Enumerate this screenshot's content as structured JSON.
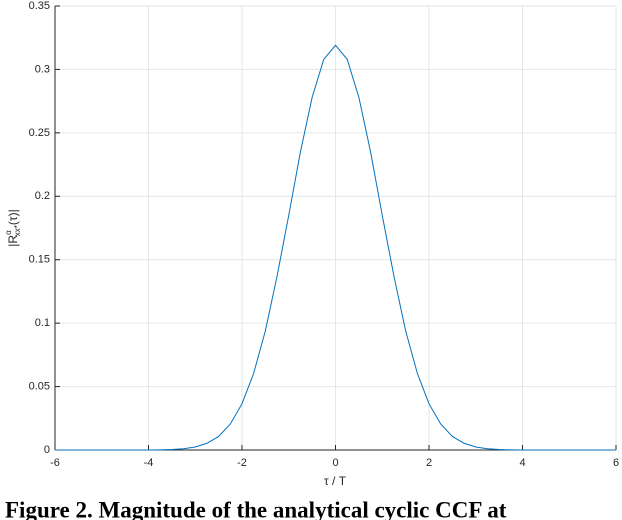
{
  "chart_data": {
    "type": "line",
    "xlabel": "τ / T",
    "ylabel": {
      "base": "|R",
      "sup": "α",
      "sub": "xx*",
      "tail": "(τ)|"
    },
    "x": [
      -6,
      -5.75,
      -5.5,
      -5.25,
      -5,
      -4.75,
      -4.5,
      -4.25,
      -4,
      -3.75,
      -3.5,
      -3.25,
      -3,
      -2.75,
      -2.5,
      -2.25,
      -2,
      -1.75,
      -1.5,
      -1.25,
      -1,
      -0.75,
      -0.5,
      -0.25,
      0,
      0.25,
      0.5,
      0.75,
      1,
      1.25,
      1.5,
      1.75,
      2,
      2.25,
      2.5,
      2.75,
      3,
      3.25,
      3.5,
      3.75,
      4,
      4.25,
      4.5,
      4.75,
      5,
      5.25,
      5.5,
      5.75,
      6
    ],
    "series": [
      {
        "color": "#0072bd",
        "values": [
          0,
          0,
          0,
          0,
          0,
          0,
          0,
          0,
          0,
          0.0001,
          0.0004,
          0.001,
          0.0024,
          0.0053,
          0.0107,
          0.0205,
          0.0364,
          0.0605,
          0.094,
          0.137,
          0.185,
          0.235,
          0.278,
          0.308,
          0.319,
          0.308,
          0.278,
          0.235,
          0.185,
          0.137,
          0.094,
          0.0605,
          0.0364,
          0.0205,
          0.0107,
          0.0053,
          0.0024,
          0.001,
          0.0004,
          0.0001,
          0,
          0,
          0,
          0,
          0,
          0,
          0,
          0,
          0
        ]
      }
    ],
    "xlim": [
      -6,
      6
    ],
    "xticks": [
      -6,
      -4,
      -2,
      0,
      2,
      4,
      6
    ],
    "ylim": [
      0,
      0.35
    ],
    "yticks": [
      0,
      0.05,
      0.1,
      0.15,
      0.2,
      0.25,
      0.3,
      0.35
    ],
    "grid": true
  },
  "caption": "Figure 2. Magnitude of the analytical cyclic CCF at"
}
